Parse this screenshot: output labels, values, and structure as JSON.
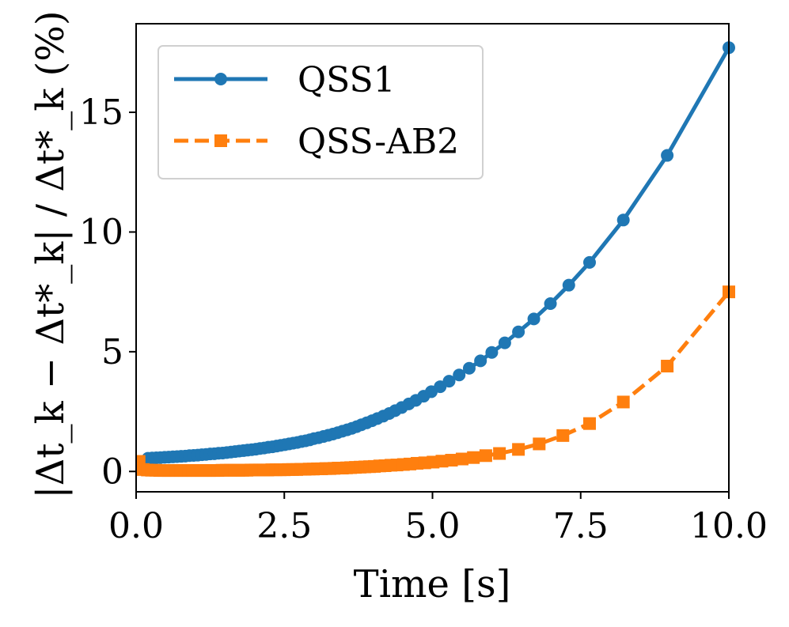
{
  "chart_data": {
    "type": "line",
    "title": "",
    "xlabel": "Time [s]",
    "ylabel": "|Δt_k − Δt*_k| / Δt*_k (%)",
    "xlim": [
      0,
      10
    ],
    "ylim": [
      -0.85,
      18.7
    ],
    "xticks": [
      0.0,
      2.5,
      5.0,
      7.5,
      10.0
    ],
    "xtick_labels": [
      "0.0",
      "2.5",
      "5.0",
      "7.5",
      "10.0"
    ],
    "yticks": [
      0,
      5,
      10,
      15
    ],
    "ytick_labels": [
      "0",
      "5",
      "10",
      "15"
    ],
    "grid": false,
    "legend_position": "top-left",
    "series": [
      {
        "name": "QSS1",
        "color": "#1f77b4",
        "line_style": "solid",
        "marker": "circle",
        "x": [
          0.2,
          0.27,
          0.34,
          0.41,
          0.48,
          0.55,
          0.62,
          0.69,
          0.76,
          0.83,
          0.9,
          0.97,
          1.04,
          1.11,
          1.18,
          1.25,
          1.32,
          1.39,
          1.46,
          1.53,
          1.6,
          1.67,
          1.74,
          1.81,
          1.88,
          1.95,
          2.02,
          2.09,
          2.16,
          2.23,
          2.3,
          2.37,
          2.44,
          2.51,
          2.58,
          2.65,
          2.72,
          2.79,
          2.86,
          2.93,
          3.0,
          3.08,
          3.16,
          3.24,
          3.32,
          3.4,
          3.48,
          3.56,
          3.64,
          3.72,
          3.8,
          3.89,
          3.98,
          4.07,
          4.17,
          4.27,
          4.37,
          4.48,
          4.6,
          4.72,
          4.85,
          4.98,
          5.13,
          5.28,
          5.45,
          5.62,
          5.81,
          6.0,
          6.22,
          6.45,
          6.71,
          6.99,
          7.3,
          7.65,
          8.22,
          8.96,
          10.0
        ],
        "y": [
          0.55,
          0.56,
          0.57,
          0.58,
          0.59,
          0.6,
          0.61,
          0.62,
          0.63,
          0.64,
          0.66,
          0.67,
          0.68,
          0.7,
          0.71,
          0.73,
          0.74,
          0.76,
          0.77,
          0.79,
          0.81,
          0.83,
          0.85,
          0.87,
          0.89,
          0.91,
          0.93,
          0.96,
          0.98,
          1.01,
          1.03,
          1.06,
          1.09,
          1.12,
          1.15,
          1.18,
          1.21,
          1.25,
          1.28,
          1.32,
          1.37,
          1.41,
          1.46,
          1.51,
          1.56,
          1.62,
          1.68,
          1.74,
          1.8,
          1.87,
          1.95,
          2.03,
          2.12,
          2.21,
          2.31,
          2.42,
          2.54,
          2.67,
          2.82,
          2.97,
          3.14,
          3.33,
          3.54,
          3.77,
          4.03,
          4.31,
          4.62,
          4.97,
          5.37,
          5.83,
          6.37,
          7.01,
          7.78,
          8.73,
          10.5,
          13.2,
          17.7
        ]
      },
      {
        "name": "QSS-AB2",
        "color": "#ff7f0e",
        "line_style": "dashed",
        "marker": "square",
        "x": [
          0.05,
          0.12,
          0.19,
          0.26,
          0.33,
          0.4,
          0.47,
          0.54,
          0.61,
          0.68,
          0.75,
          0.82,
          0.89,
          0.96,
          1.03,
          1.1,
          1.17,
          1.24,
          1.31,
          1.38,
          1.45,
          1.52,
          1.59,
          1.66,
          1.73,
          1.8,
          1.87,
          1.94,
          2.01,
          2.08,
          2.15,
          2.22,
          2.29,
          2.36,
          2.43,
          2.5,
          2.57,
          2.64,
          2.71,
          2.78,
          2.85,
          2.92,
          2.99,
          3.06,
          3.13,
          3.2,
          3.27,
          3.34,
          3.41,
          3.48,
          3.55,
          3.62,
          3.7,
          3.78,
          3.86,
          3.94,
          4.02,
          4.11,
          4.2,
          4.3,
          4.4,
          4.51,
          4.62,
          4.74,
          4.87,
          5.01,
          5.16,
          5.32,
          5.5,
          5.69,
          5.9,
          6.13,
          6.45,
          6.8,
          7.2,
          7.65,
          8.22,
          8.96,
          10.0
        ],
        "y": [
          0.42,
          0.08,
          0.06,
          0.05,
          0.05,
          0.04,
          0.04,
          0.04,
          0.04,
          0.04,
          0.04,
          0.04,
          0.04,
          0.04,
          0.04,
          0.04,
          0.04,
          0.04,
          0.04,
          0.04,
          0.05,
          0.05,
          0.05,
          0.05,
          0.05,
          0.05,
          0.05,
          0.06,
          0.06,
          0.06,
          0.06,
          0.06,
          0.07,
          0.07,
          0.07,
          0.07,
          0.08,
          0.08,
          0.08,
          0.09,
          0.09,
          0.1,
          0.1,
          0.11,
          0.11,
          0.12,
          0.12,
          0.13,
          0.14,
          0.14,
          0.15,
          0.16,
          0.17,
          0.18,
          0.19,
          0.2,
          0.21,
          0.23,
          0.24,
          0.26,
          0.27,
          0.29,
          0.31,
          0.34,
          0.36,
          0.39,
          0.43,
          0.47,
          0.52,
          0.58,
          0.66,
          0.75,
          0.92,
          1.15,
          1.5,
          2.0,
          2.9,
          4.4,
          7.5
        ]
      }
    ]
  }
}
